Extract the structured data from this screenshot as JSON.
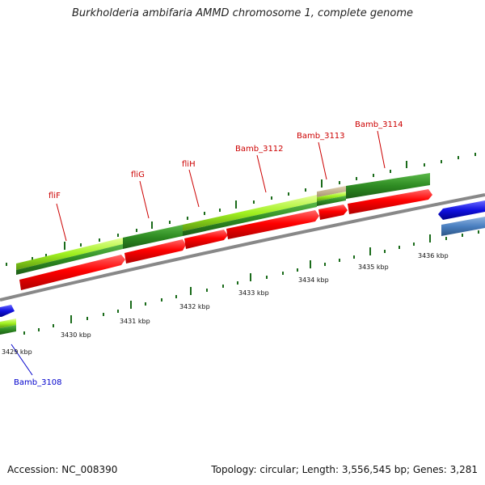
{
  "title": "Burkholderia ambifaria AMMD chromosome 1, complete genome",
  "footer": {
    "accession": "Accession: NC_008390",
    "summary": "Topology: circular; Length: 3,556,545 bp; Genes: 3,281"
  },
  "colors": {
    "cds": "#ff0000",
    "gene_green": "#2e8b22",
    "gene_lime": "#a0f020",
    "other_blue": "#1010e0",
    "steel_blue": "#4a7fc0",
    "label_red": "#cc0000",
    "label_blue": "#0000cc",
    "tick_green": "#1a6b1a",
    "backbone": "#888888"
  },
  "scale_labels": [
    "3429 kbp",
    "3430 kbp",
    "3431 kbp",
    "3432 kbp",
    "3433 kbp",
    "3434 kbp",
    "3435 kbp",
    "3436 kbp"
  ],
  "gene_labels": [
    {
      "text": "fliF",
      "color": "red"
    },
    {
      "text": "fliG",
      "color": "red"
    },
    {
      "text": "fliH",
      "color": "red"
    },
    {
      "text": "Bamb_3112",
      "color": "red"
    },
    {
      "text": "Bamb_3113",
      "color": "red"
    },
    {
      "text": "Bamb_3114",
      "color": "red"
    },
    {
      "text": "Bamb_3108",
      "color": "blue"
    }
  ]
}
